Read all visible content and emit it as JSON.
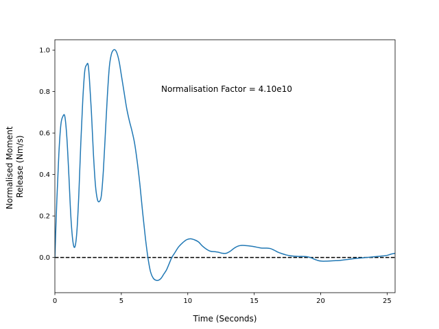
{
  "chart_data": {
    "type": "line",
    "title": "",
    "xlabel": "Time (Seconds)",
    "ylabel": [
      "Normalised Moment",
      "Release (Nm/s)"
    ],
    "xlim": [
      0,
      25.6
    ],
    "ylim": [
      -0.17,
      1.05
    ],
    "x_ticks": [
      0,
      5,
      10,
      15,
      20,
      25
    ],
    "x_tick_labels": [
      "0",
      "5",
      "10",
      "15",
      "20",
      "25"
    ],
    "y_ticks": [
      0.0,
      0.2,
      0.4,
      0.6,
      0.8,
      1.0
    ],
    "y_tick_labels": [
      "0.0",
      "0.2",
      "0.4",
      "0.6",
      "0.8",
      "1.0"
    ],
    "grid": false,
    "annotation": "Normalisation Factor = 4.10e10",
    "reference_line": {
      "y": 0.0,
      "style": "dashed",
      "color": "#000000"
    },
    "series": [
      {
        "color": "#1f77b4",
        "x": [
          0.0,
          0.15,
          0.3,
          0.45,
          0.6,
          0.75,
          0.9,
          1.05,
          1.2,
          1.35,
          1.5,
          1.65,
          1.8,
          1.95,
          2.1,
          2.25,
          2.4,
          2.5,
          2.6,
          2.75,
          2.9,
          3.05,
          3.2,
          3.35,
          3.5,
          3.65,
          3.8,
          3.95,
          4.1,
          4.25,
          4.4,
          4.55,
          4.7,
          4.85,
          5.0,
          5.2,
          5.4,
          5.6,
          5.8,
          6.0,
          6.2,
          6.4,
          6.6,
          6.8,
          7.0,
          7.2,
          7.4,
          7.6,
          7.8,
          8.0,
          8.2,
          8.4,
          8.6,
          8.8,
          9.0,
          9.3,
          9.6,
          9.9,
          10.2,
          10.5,
          10.8,
          11.1,
          11.4,
          11.7,
          12.0,
          12.3,
          12.6,
          12.9,
          13.2,
          13.5,
          13.8,
          14.1,
          14.4,
          14.7,
          15.0,
          15.3,
          15.6,
          15.9,
          16.2,
          16.5,
          16.8,
          17.1,
          17.4,
          17.7,
          18.0,
          18.3,
          18.6,
          18.9,
          19.2,
          19.5,
          19.8,
          20.1,
          20.4,
          20.7,
          21.0,
          21.5,
          22.0,
          22.5,
          23.0,
          23.5,
          24.0,
          24.5,
          25.0,
          25.3,
          25.6
        ],
        "y": [
          0.0,
          0.28,
          0.5,
          0.64,
          0.68,
          0.68,
          0.58,
          0.4,
          0.2,
          0.08,
          0.05,
          0.12,
          0.3,
          0.55,
          0.76,
          0.9,
          0.93,
          0.93,
          0.86,
          0.7,
          0.5,
          0.35,
          0.28,
          0.27,
          0.3,
          0.42,
          0.6,
          0.78,
          0.92,
          0.98,
          1.0,
          1.0,
          0.98,
          0.94,
          0.88,
          0.8,
          0.72,
          0.66,
          0.61,
          0.55,
          0.46,
          0.35,
          0.22,
          0.1,
          0.0,
          -0.07,
          -0.1,
          -0.11,
          -0.11,
          -0.1,
          -0.08,
          -0.06,
          -0.03,
          0.0,
          0.02,
          0.05,
          0.07,
          0.085,
          0.09,
          0.085,
          0.075,
          0.055,
          0.04,
          0.03,
          0.028,
          0.025,
          0.02,
          0.02,
          0.03,
          0.045,
          0.055,
          0.058,
          0.057,
          0.055,
          0.052,
          0.048,
          0.045,
          0.045,
          0.043,
          0.035,
          0.025,
          0.018,
          0.012,
          0.008,
          0.006,
          0.005,
          0.005,
          0.004,
          0.0,
          -0.008,
          -0.015,
          -0.018,
          -0.018,
          -0.017,
          -0.016,
          -0.014,
          -0.01,
          -0.006,
          -0.003,
          0.0,
          0.003,
          0.006,
          0.01,
          0.016,
          0.02
        ]
      }
    ]
  }
}
